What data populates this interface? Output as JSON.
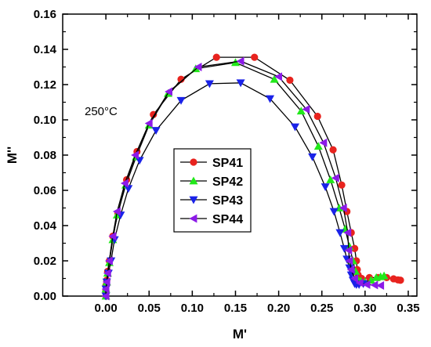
{
  "chart_data": {
    "type": "scatter",
    "xlabel": "M'",
    "ylabel": "M''",
    "xlim": [
      -0.05,
      0.36
    ],
    "ylim": [
      0,
      0.16
    ],
    "x_ticks": [
      "0.00",
      "0.05",
      "0.10",
      "0.15",
      "0.20",
      "0.25",
      "0.30",
      "0.35"
    ],
    "y_ticks": [
      "0.00",
      "0.02",
      "0.04",
      "0.06",
      "0.08",
      "0.10",
      "0.12",
      "0.14",
      "0.16"
    ],
    "annotation": "250°C",
    "legend_position": "center",
    "grid": false,
    "series": [
      {
        "name": "SP41",
        "color": "#e8231e",
        "marker": "circle",
        "x": [
          0.0,
          0.0,
          0.0,
          0.001,
          0.002,
          0.004,
          0.008,
          0.014,
          0.024,
          0.036,
          0.055,
          0.087,
          0.128,
          0.172,
          0.213,
          0.245,
          0.263,
          0.273,
          0.279,
          0.284,
          0.288,
          0.29,
          0.291,
          0.292,
          0.296,
          0.305,
          0.315,
          0.325,
          0.333,
          0.338,
          0.341
        ],
        "y": [
          0.0,
          0.003,
          0.006,
          0.009,
          0.014,
          0.02,
          0.034,
          0.047,
          0.066,
          0.082,
          0.103,
          0.123,
          0.1355,
          0.1355,
          0.1225,
          0.102,
          0.083,
          0.063,
          0.048,
          0.036,
          0.027,
          0.02,
          0.015,
          0.012,
          0.01,
          0.0105,
          0.0105,
          0.0105,
          0.0098,
          0.0092,
          0.009
        ]
      },
      {
        "name": "SP42",
        "color": "#22e81a",
        "marker": "triangle-up",
        "x": [
          0.0,
          0.0,
          0.001,
          0.002,
          0.004,
          0.008,
          0.013,
          0.023,
          0.035,
          0.05,
          0.072,
          0.104,
          0.15,
          0.195,
          0.226,
          0.246,
          0.26,
          0.27,
          0.277,
          0.282,
          0.286,
          0.289,
          0.291,
          0.295,
          0.3,
          0.307,
          0.313,
          0.318,
          0.322
        ],
        "y": [
          0.0,
          0.004,
          0.008,
          0.013,
          0.019,
          0.032,
          0.046,
          0.063,
          0.079,
          0.097,
          0.115,
          0.129,
          0.1325,
          0.123,
          0.105,
          0.085,
          0.066,
          0.05,
          0.038,
          0.028,
          0.02,
          0.014,
          0.01,
          0.0085,
          0.008,
          0.009,
          0.0105,
          0.011,
          0.0115
        ]
      },
      {
        "name": "SP43",
        "color": "#1a22e8",
        "marker": "triangle-down",
        "x": [
          0.0,
          0.0,
          0.001,
          0.003,
          0.006,
          0.01,
          0.017,
          0.026,
          0.039,
          0.058,
          0.087,
          0.12,
          0.156,
          0.19,
          0.219,
          0.239,
          0.254,
          0.264,
          0.271,
          0.276,
          0.279,
          0.282,
          0.284,
          0.286,
          0.288,
          0.29,
          0.293,
          0.298
        ],
        "y": [
          0.0,
          0.004,
          0.008,
          0.013,
          0.02,
          0.032,
          0.046,
          0.061,
          0.077,
          0.094,
          0.111,
          0.1205,
          0.121,
          0.112,
          0.096,
          0.079,
          0.062,
          0.048,
          0.036,
          0.027,
          0.021,
          0.016,
          0.012,
          0.009,
          0.007,
          0.0065,
          0.0065,
          0.007
        ]
      },
      {
        "name": "SP44",
        "color": "#8c1ae8",
        "marker": "triangle-left",
        "x": [
          0.0,
          0.0,
          0.001,
          0.002,
          0.004,
          0.008,
          0.013,
          0.022,
          0.034,
          0.05,
          0.073,
          0.107,
          0.156,
          0.2,
          0.232,
          0.252,
          0.266,
          0.275,
          0.28,
          0.281,
          0.282,
          0.284,
          0.288,
          0.294,
          0.302,
          0.311,
          0.318
        ],
        "y": [
          0.0,
          0.004,
          0.008,
          0.013,
          0.02,
          0.034,
          0.048,
          0.064,
          0.08,
          0.098,
          0.116,
          0.13,
          0.1333,
          0.1245,
          0.106,
          0.087,
          0.067,
          0.05,
          0.036,
          0.026,
          0.02,
          0.015,
          0.01,
          0.0075,
          0.0065,
          0.0063,
          0.006
        ]
      }
    ]
  }
}
